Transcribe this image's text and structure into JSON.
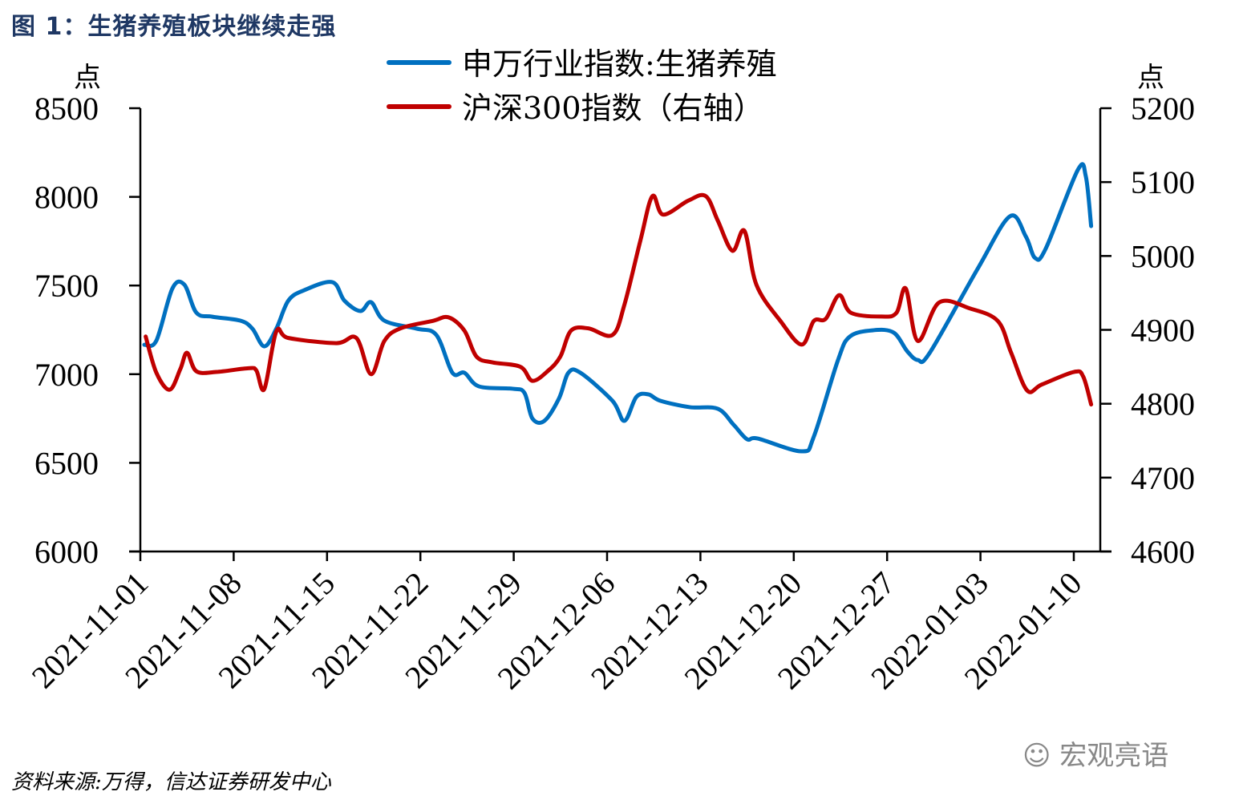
{
  "figure_title": "图 1：生猪养殖板块继续走强",
  "source": "资料来源:万得，信达证券研发中心",
  "watermark": "宏观亮语",
  "chart_data": {
    "type": "line",
    "title": "生猪养殖板块继续走强",
    "ylabel_left": "点",
    "ylabel_right": "点",
    "ylim_left": [
      6000,
      8500
    ],
    "ylim_right": [
      4600,
      5200
    ],
    "yticks_left": [
      "6000",
      "6500",
      "7000",
      "7500",
      "8000",
      "8500"
    ],
    "yticks_right": [
      "4600",
      "4700",
      "4800",
      "4900",
      "5000",
      "5100",
      "5200"
    ],
    "xticks": [
      "2021-11-01",
      "2021-11-08",
      "2021-11-15",
      "2021-11-22",
      "2021-11-29",
      "2021-12-06",
      "2021-12-13",
      "2021-12-20",
      "2021-12-27",
      "2022-01-03",
      "2022-01-10"
    ],
    "x_unit": "days since 2021-11-01",
    "legend_position": "top-center",
    "colors": {
      "blue": "#0070c0",
      "red": "#c00000"
    },
    "series": [
      {
        "name": "申万行业指数:生猪养殖",
        "axis": "left",
        "color": "#0070c0",
        "x": [
          0.3,
          1.2,
          2.4,
          3.3,
          4.2,
          5.4,
          7.5,
          8.4,
          9.3,
          10.2,
          11.1,
          12.3,
          14.4,
          15.3,
          16.5,
          17.3,
          18.3,
          20.7,
          22.2,
          23.4,
          24.3,
          25.4,
          27.9,
          28.8,
          29.4,
          30.3,
          31.4,
          32.1,
          33,
          35.4,
          36.3,
          37.2,
          38.1,
          39,
          41.2,
          43.3,
          44.5,
          45.5,
          46.3,
          49.6,
          50.5,
          52.3,
          53.2,
          55,
          56.5,
          57.5,
          58.3,
          59.2,
          62.8,
          65.2,
          66.4,
          67.1,
          67.9,
          70.3,
          70.9,
          71.3
        ],
        "values": [
          7166,
          7189,
          7483,
          7505,
          7347,
          7324,
          7302,
          7257,
          7157,
          7257,
          7415,
          7474,
          7519,
          7415,
          7356,
          7406,
          7302,
          7257,
          7221,
          7008,
          7008,
          6931,
          6918,
          6895,
          6750,
          6737,
          6864,
          7008,
          7008,
          6850,
          6737,
          6872,
          6886,
          6850,
          6814,
          6805,
          6714,
          6633,
          6637,
          6565,
          6647,
          7076,
          7212,
          7248,
          7234,
          7130,
          7080,
          7121,
          7596,
          7890,
          7777,
          7655,
          7709,
          8152,
          8116,
          7835
        ]
      },
      {
        "name": "沪深300指数（右轴）",
        "axis": "right",
        "color": "#c00000",
        "x": [
          0.4,
          1.2,
          2.2,
          3,
          3.5,
          4.2,
          5.7,
          8.1,
          8.7,
          9.3,
          10.2,
          11.1,
          14.7,
          16.2,
          17.3,
          18.3,
          19.5,
          21.9,
          23.1,
          24.3,
          25.2,
          26.4,
          28.5,
          29.4,
          30.6,
          31.5,
          32.3,
          33.6,
          35.4,
          36.3,
          37.5,
          38.4,
          39.2,
          41.1,
          42.4,
          43.3,
          44.4,
          45.3,
          46.2,
          48,
          49.6,
          50.5,
          51.4,
          52.4,
          53.3,
          55.6,
          56.7,
          57.4,
          58.3,
          59.9,
          62.2,
          64.3,
          65.3,
          66.5,
          67.6,
          70,
          70.7,
          71.3
        ],
        "values": [
          4891,
          4842,
          4819,
          4847,
          4869,
          4844,
          4843,
          4848,
          4845,
          4820,
          4898,
          4889,
          4882,
          4889,
          4840,
          4885,
          4902,
          4912,
          4917,
          4899,
          4864,
          4856,
          4850,
          4831,
          4845,
          4864,
          4899,
          4902,
          4893,
          4934,
          5021,
          5081,
          5056,
          5075,
          5081,
          5048,
          5007,
          5034,
          4961,
          4912,
          4880,
          4912,
          4915,
          4947,
          4923,
          4918,
          4923,
          4956,
          4885,
          4937,
          4929,
          4912,
          4869,
          4818,
          4826,
          4843,
          4837,
          4799
        ]
      }
    ]
  }
}
